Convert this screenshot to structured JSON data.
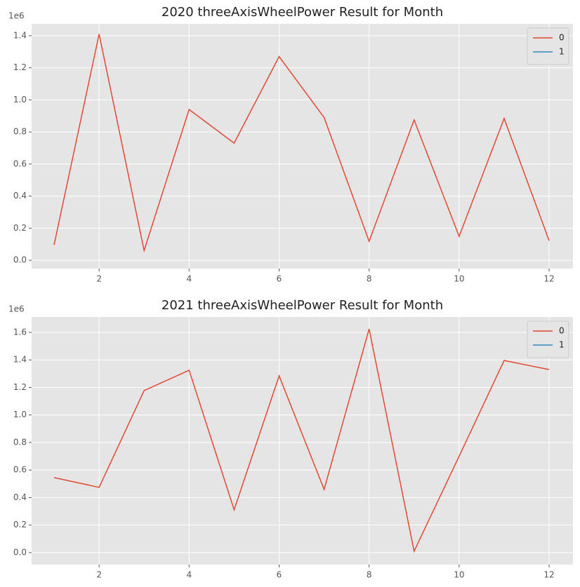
{
  "chart_data": [
    {
      "type": "line",
      "title": "2020 threeAxisWheelPower Result for Month",
      "offset_label": "1e6",
      "x": [
        1,
        2,
        3,
        4,
        5,
        6,
        7,
        8,
        9,
        10,
        11,
        12
      ],
      "series": [
        {
          "name": "0",
          "color": "#e24a33",
          "values": [
            0.096,
            1.41,
            0.061,
            0.94,
            0.73,
            1.27,
            0.89,
            0.118,
            0.875,
            0.149,
            0.884,
            0.122
          ]
        },
        {
          "name": "1",
          "color": "#348abd",
          "values": [
            null,
            null,
            null,
            null,
            null,
            null,
            null,
            null,
            null,
            null,
            null,
            null
          ]
        }
      ],
      "xlim": [
        0.5,
        12.53
      ],
      "xticks": [
        2,
        4,
        6,
        8,
        10,
        12
      ],
      "ylim": [
        -0.052,
        1.474
      ],
      "yticks": [
        {
          "value": 0,
          "label": "0.0"
        },
        0.2,
        0.4,
        0.6,
        0.8,
        {
          "value": 1,
          "label": "1.0"
        },
        1.2,
        1.4
      ],
      "grid": true,
      "legend": "upper right"
    },
    {
      "type": "line",
      "title": "2021 threeAxisWheelPower Result for Month",
      "offset_label": "1e6",
      "x": [
        1,
        2,
        3,
        4,
        5,
        6,
        7,
        8,
        9,
        10,
        11,
        12
      ],
      "series": [
        {
          "name": "0",
          "color": "#e24a33",
          "values": [
            0.545,
            0.474,
            1.177,
            1.325,
            0.311,
            1.284,
            0.459,
            1.625,
            0.01,
            0.7,
            1.396,
            1.33
          ]
        },
        {
          "name": "1",
          "color": "#348abd",
          "values": [
            null,
            null,
            null,
            null,
            null,
            null,
            null,
            null,
            null,
            null,
            null,
            null
          ]
        }
      ],
      "xlim": [
        0.5,
        12.53
      ],
      "xticks": [
        2,
        4,
        6,
        8,
        10,
        12
      ],
      "ylim": [
        -0.087,
        1.712
      ],
      "yticks": [
        {
          "value": 0,
          "label": "0.0"
        },
        0.2,
        0.4,
        0.6,
        0.8,
        {
          "value": 1,
          "label": "1.0"
        },
        1.2,
        1.4,
        1.6
      ],
      "grid": true,
      "legend": "upper right"
    }
  ]
}
